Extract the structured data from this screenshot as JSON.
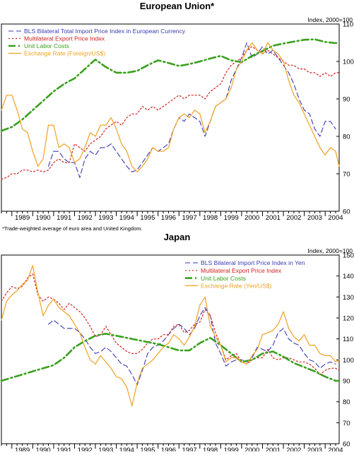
{
  "chart_data": [
    {
      "type": "line",
      "title": "European Union*",
      "ylabel": "Index, 2000=100",
      "footnote": "*Trade-weighted average of euro area and United Kingdom.",
      "xlim": [
        1988.5,
        2004.67
      ],
      "ylim": [
        60,
        110
      ],
      "yticks": [
        60,
        70,
        80,
        90,
        100,
        110
      ],
      "xticks": [
        "1989",
        "1990",
        "1991",
        "1992",
        "1993",
        "1994",
        "1995",
        "1996",
        "1997",
        "1998",
        "1999",
        "2000",
        "2001",
        "2002",
        "2003",
        "2004"
      ],
      "legend_position": "top-left",
      "grid": false,
      "series": [
        {
          "name": "BLS Bilateral Total Import Price Index in European Currency",
          "color": "#3a3ab4",
          "dash": "dash",
          "x": [
            1990.75,
            1991.0,
            1991.25,
            1991.5,
            1991.75,
            1992.0,
            1992.25,
            1992.5,
            1992.75,
            1993.0,
            1993.25,
            1993.5,
            1993.75,
            1994.0,
            1994.25,
            1994.5,
            1994.75,
            1995.0,
            1995.25,
            1995.5,
            1995.75,
            1996.0,
            1996.25,
            1996.5,
            1996.75,
            1997.0,
            1997.25,
            1997.5,
            1997.75,
            1998.0,
            1998.25,
            1998.5,
            1998.75,
            1999.0,
            1999.25,
            1999.5,
            1999.75,
            2000.0,
            2000.25,
            2000.5,
            2000.75,
            2001.0,
            2001.25,
            2001.5,
            2001.75,
            2002.0,
            2002.25,
            2002.5,
            2002.75,
            2003.0,
            2003.25,
            2003.5,
            2003.75,
            2004.0,
            2004.25,
            2004.5
          ],
          "y": [
            72,
            76,
            76,
            74,
            73,
            73,
            69,
            74,
            76,
            75,
            77,
            77,
            78,
            76,
            74,
            72,
            70.5,
            71,
            73,
            75,
            77,
            76,
            77,
            78,
            82,
            85,
            84,
            86,
            85,
            84,
            80,
            84,
            88,
            89,
            90,
            95,
            98,
            101,
            105,
            101,
            102,
            104,
            102,
            103,
            101,
            99,
            97,
            94,
            90,
            87,
            86,
            82,
            80,
            84,
            84,
            82
          ]
        },
        {
          "name": "Multilateral Export Price Index",
          "color": "#d02020",
          "dash": "dot",
          "x": [
            1988.5,
            1988.75,
            1989.0,
            1989.25,
            1989.5,
            1989.75,
            1990.0,
            1990.25,
            1990.5,
            1990.75,
            1991.0,
            1991.25,
            1991.5,
            1991.75,
            1992.0,
            1992.25,
            1992.5,
            1992.75,
            1993.0,
            1993.25,
            1993.5,
            1993.75,
            1994.0,
            1994.25,
            1994.5,
            1994.75,
            1995.0,
            1995.25,
            1995.5,
            1995.75,
            1996.0,
            1996.25,
            1996.5,
            1996.75,
            1997.0,
            1997.25,
            1997.5,
            1997.75,
            1998.0,
            1998.25,
            1998.5,
            1998.75,
            1999.0,
            1999.25,
            1999.5,
            1999.75,
            2000.0,
            2000.25,
            2000.5,
            2000.75,
            2001.0,
            2001.25,
            2001.5,
            2001.75,
            2002.0,
            2002.25,
            2002.5,
            2002.75,
            2003.0,
            2003.25,
            2003.5,
            2003.75,
            2004.0,
            2004.25,
            2004.5,
            2004.67
          ],
          "y": [
            68.5,
            69,
            70,
            70,
            71,
            71,
            70.5,
            71,
            70.5,
            71,
            73,
            74,
            73,
            73,
            78,
            77,
            76,
            78,
            79,
            80,
            82,
            83,
            84,
            83,
            85,
            86,
            86,
            88,
            87,
            88,
            87,
            88,
            89,
            90,
            91,
            90,
            91,
            91,
            91,
            90,
            92,
            93,
            94,
            97,
            99,
            100,
            101,
            103,
            104,
            103,
            102,
            103,
            102,
            101,
            100,
            99,
            99,
            98,
            98,
            97,
            97,
            96,
            97,
            96,
            97,
            97
          ]
        },
        {
          "name": "Unit Labor Costs",
          "color": "#3aa01e",
          "dash": "dashdot",
          "x": [
            1988.5,
            1989.0,
            1989.5,
            1990.0,
            1990.5,
            1991.0,
            1991.5,
            1992.0,
            1992.5,
            1993.0,
            1993.5,
            1994.0,
            1994.5,
            1995.0,
            1995.5,
            1996.0,
            1996.5,
            1997.0,
            1997.5,
            1998.0,
            1998.5,
            1999.0,
            1999.5,
            2000.0,
            2000.5,
            2001.0,
            2001.5,
            2002.0,
            2002.5,
            2003.0,
            2003.5,
            2004.0,
            2004.5,
            2004.67
          ],
          "y": [
            81.5,
            82.5,
            84.5,
            87,
            89.5,
            92,
            94,
            95.5,
            98,
            100.5,
            98.5,
            97,
            97,
            97.5,
            99,
            100.3,
            99.6,
            98.8,
            99.3,
            100,
            100.8,
            101.5,
            100.3,
            99.8,
            101.5,
            102.8,
            104.2,
            104.8,
            105.3,
            105.8,
            105.9,
            105.2,
            104.9,
            105
          ]
        },
        {
          "name": "Exchange Rate (Foreign/US$)",
          "color": "#f0a020",
          "dash": "solid",
          "x": [
            1988.5,
            1988.75,
            1989.0,
            1989.25,
            1989.5,
            1989.75,
            1990.0,
            1990.25,
            1990.5,
            1990.75,
            1991.0,
            1991.25,
            1991.5,
            1991.75,
            1992.0,
            1992.25,
            1992.5,
            1992.75,
            1993.0,
            1993.25,
            1993.5,
            1993.75,
            1994.0,
            1994.25,
            1994.5,
            1994.75,
            1995.0,
            1995.25,
            1995.5,
            1995.75,
            1996.0,
            1996.25,
            1996.5,
            1996.75,
            1997.0,
            1997.25,
            1997.5,
            1997.75,
            1998.0,
            1998.25,
            1998.5,
            1998.75,
            1999.0,
            1999.25,
            1999.5,
            1999.75,
            2000.0,
            2000.25,
            2000.5,
            2000.75,
            2001.0,
            2001.25,
            2001.5,
            2001.75,
            2002.0,
            2002.25,
            2002.5,
            2002.75,
            2003.0,
            2003.25,
            2003.5,
            2003.75,
            2004.0,
            2004.25,
            2004.5,
            2004.67
          ],
          "y": [
            87,
            91,
            91,
            87,
            82,
            81,
            76,
            72,
            74,
            83,
            83,
            77,
            78,
            77,
            73,
            74,
            77,
            81,
            80,
            83,
            83,
            85,
            82,
            78,
            76,
            72,
            70.5,
            72,
            74,
            77,
            76,
            76,
            77,
            82,
            85,
            86,
            85,
            87,
            86,
            81,
            84,
            88,
            89,
            90,
            93,
            98,
            100,
            103,
            105,
            103,
            102,
            105,
            103,
            102,
            100,
            95,
            91,
            89,
            86,
            83,
            80,
            77,
            75,
            77,
            76,
            72
          ]
        }
      ]
    },
    {
      "type": "line",
      "title": "Japan",
      "ylabel": "Index, 2000=100",
      "xlim": [
        1988.5,
        2004.67
      ],
      "ylim": [
        60,
        150
      ],
      "yticks": [
        60,
        70,
        80,
        90,
        100,
        110,
        120,
        130,
        140,
        150
      ],
      "xticks": [
        "1989",
        "1990",
        "1991",
        "1992",
        "1993",
        "1994",
        "1995",
        "1996",
        "1997",
        "1998",
        "1999",
        "2000",
        "2001",
        "2002",
        "2003",
        "2004"
      ],
      "legend_position": "top-right",
      "grid": false,
      "series": [
        {
          "name": "BLS Bilateral Import Price Index in Yen",
          "color": "#3a3ab4",
          "dash": "dash",
          "x": [
            1990.75,
            1991.0,
            1991.25,
            1991.5,
            1991.75,
            1992.0,
            1992.25,
            1992.5,
            1992.75,
            1993.0,
            1993.25,
            1993.5,
            1993.75,
            1994.0,
            1994.25,
            1994.5,
            1994.75,
            1995.0,
            1995.25,
            1995.5,
            1995.75,
            1996.0,
            1996.25,
            1996.5,
            1996.75,
            1997.0,
            1997.25,
            1997.5,
            1997.75,
            1998.0,
            1998.25,
            1998.5,
            1998.75,
            1999.0,
            1999.25,
            1999.5,
            1999.75,
            2000.0,
            2000.25,
            2000.5,
            2000.75,
            2001.0,
            2001.25,
            2001.5,
            2001.75,
            2002.0,
            2002.25,
            2002.5,
            2002.75,
            2003.0,
            2003.25,
            2003.5,
            2003.75,
            2004.0,
            2004.25,
            2004.5
          ],
          "y": [
            117,
            119,
            117,
            115,
            115,
            115,
            113,
            110,
            106,
            103,
            104,
            106,
            104,
            101,
            98,
            97,
            93,
            88,
            95,
            103,
            106,
            107,
            109,
            112,
            115,
            117,
            115,
            112,
            115,
            121,
            125,
            121,
            108,
            103,
            97,
            99,
            100,
            100,
            99,
            101,
            106,
            105,
            104,
            107,
            113,
            115,
            110,
            108,
            107,
            103,
            100,
            99,
            96,
            98,
            99,
            98
          ]
        },
        {
          "name": "Multilateral Export Price Index",
          "color": "#d02020",
          "dash": "dot",
          "x": [
            1988.5,
            1988.75,
            1989.0,
            1989.25,
            1989.5,
            1989.75,
            1990.0,
            1990.25,
            1990.5,
            1990.75,
            1991.0,
            1991.25,
            1991.5,
            1991.75,
            1992.0,
            1992.25,
            1992.5,
            1992.75,
            1993.0,
            1993.25,
            1993.5,
            1993.75,
            1994.0,
            1994.25,
            1994.5,
            1994.75,
            1995.0,
            1995.25,
            1995.5,
            1995.75,
            1996.0,
            1996.25,
            1996.5,
            1996.75,
            1997.0,
            1997.25,
            1997.5,
            1997.75,
            1998.0,
            1998.25,
            1998.5,
            1998.75,
            1999.0,
            1999.25,
            1999.5,
            1999.75,
            2000.0,
            2000.25,
            2000.5,
            2000.75,
            2001.0,
            2001.25,
            2001.5,
            2001.75,
            2002.0,
            2002.25,
            2002.5,
            2002.75,
            2003.0,
            2003.25,
            2003.5,
            2003.75,
            2004.0,
            2004.25,
            2004.5,
            2004.67
          ],
          "y": [
            128,
            132,
            135,
            134,
            135,
            139,
            141,
            131,
            128,
            130,
            129,
            127,
            124,
            127,
            125,
            123,
            120,
            116,
            111,
            112,
            116,
            112,
            108,
            106,
            104,
            103,
            103,
            105,
            108,
            110,
            110,
            112,
            112,
            116,
            117,
            113,
            114,
            117,
            118,
            124,
            121,
            113,
            107,
            100,
            102,
            103,
            99,
            98,
            100,
            101,
            101,
            105,
            101,
            100,
            101,
            101,
            100,
            99,
            99,
            98,
            96,
            93,
            95,
            96,
            96,
            95
          ]
        },
        {
          "name": "Unit Labor Costs",
          "color": "#3aa01e",
          "dash": "dashdot",
          "x": [
            1988.5,
            1989.0,
            1989.5,
            1990.0,
            1990.5,
            1991.0,
            1991.5,
            1992.0,
            1992.5,
            1993.0,
            1993.5,
            1994.0,
            1994.5,
            1995.0,
            1995.5,
            1996.0,
            1996.5,
            1997.0,
            1997.5,
            1998.0,
            1998.5,
            1999.0,
            1999.5,
            2000.0,
            2000.5,
            2001.0,
            2001.5,
            2002.0,
            2002.5,
            2003.0,
            2003.5,
            2004.0,
            2004.5,
            2004.67
          ],
          "y": [
            90,
            91.5,
            93,
            94.5,
            96,
            97.5,
            101,
            106,
            109,
            111.5,
            112.5,
            111.5,
            110.5,
            109.5,
            108.5,
            107.5,
            106,
            104.5,
            104.5,
            108,
            110.5,
            107,
            103,
            99,
            100,
            103,
            104,
            101.5,
            98.5,
            96.5,
            94.5,
            92,
            90,
            90
          ]
        },
        {
          "name": "Exchange Rate (Yen/US$)",
          "color": "#f0a020",
          "dash": "solid",
          "x": [
            1988.5,
            1988.75,
            1989.0,
            1989.25,
            1989.5,
            1989.75,
            1990.0,
            1990.25,
            1990.5,
            1990.75,
            1991.0,
            1991.25,
            1991.5,
            1991.75,
            1992.0,
            1992.25,
            1992.5,
            1992.75,
            1993.0,
            1993.25,
            1993.5,
            1993.75,
            1994.0,
            1994.25,
            1994.5,
            1994.75,
            1995.0,
            1995.25,
            1995.5,
            1995.75,
            1996.0,
            1996.25,
            1996.5,
            1996.75,
            1997.0,
            1997.25,
            1997.5,
            1997.75,
            1998.0,
            1998.25,
            1998.5,
            1998.75,
            1999.0,
            1999.25,
            1999.5,
            1999.75,
            2000.0,
            2000.25,
            2000.5,
            2000.75,
            2001.0,
            2001.25,
            2001.5,
            2001.75,
            2002.0,
            2002.25,
            2002.5,
            2002.75,
            2003.0,
            2003.25,
            2003.5,
            2003.75,
            2004.0,
            2004.25,
            2004.5,
            2004.67
          ],
          "y": [
            119,
            128,
            131,
            133,
            136,
            138,
            145,
            132,
            121,
            126,
            129,
            125,
            123,
            121,
            117,
            113,
            106,
            100,
            98,
            102,
            99,
            96,
            92,
            91,
            87,
            78,
            89,
            96,
            98,
            100,
            103,
            106,
            108,
            112,
            110,
            107,
            111,
            116,
            126,
            130,
            116,
            111,
            107,
            99,
            101,
            101,
            99,
            98,
            102,
            105,
            112,
            113,
            114,
            117,
            123,
            115,
            111,
            109,
            112,
            107,
            107,
            103,
            102,
            102,
            99,
            100
          ]
        }
      ]
    }
  ]
}
